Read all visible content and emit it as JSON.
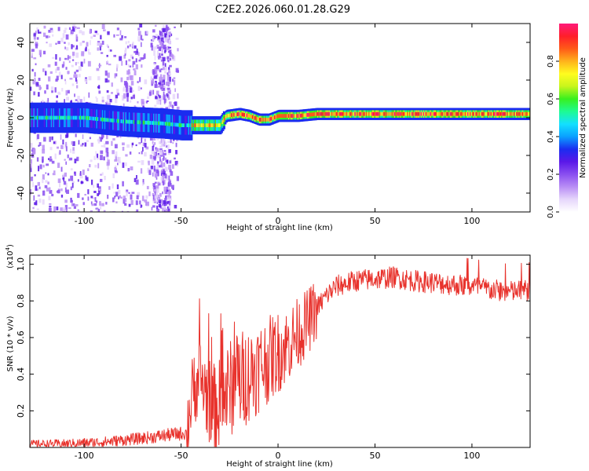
{
  "title": "C2E2.2026.060.01.28.G29",
  "colors": {
    "snr_line": "#e8322c",
    "colormap": [
      "#ffffff",
      "#e6d6fb",
      "#b98ef5",
      "#8a4ff0",
      "#5a18e8",
      "#1a2cf0",
      "#0aa0ff",
      "#13e0ff",
      "#1dfb93",
      "#39f01e",
      "#c8f51c",
      "#fffc1f",
      "#ffb21c",
      "#ff5a18",
      "#ff1f2a",
      "#ff1a7a"
    ]
  },
  "chart_data": [
    {
      "type": "heatmap",
      "xlabel": "Height of straight line (km)",
      "ylabel": "Frequency (Hz)",
      "xlim": [
        -128,
        130
      ],
      "ylim": [
        -50,
        50
      ],
      "xticks": [
        -100,
        -50,
        0,
        50,
        100
      ],
      "yticks": [
        -40,
        -20,
        0,
        20,
        40
      ],
      "colorbar": {
        "label": "Normalized spectral amplitude",
        "range": [
          0,
          1
        ],
        "ticks": [
          "0.0",
          "0.2",
          "0.4",
          "0.6",
          "0.8"
        ]
      },
      "ridge": {
        "x": [
          -128,
          -100,
          -80,
          -60,
          -50,
          -40,
          -30,
          -27,
          -20,
          -15,
          -10,
          -5,
          0,
          5,
          10,
          20,
          40,
          60,
          80,
          90,
          100,
          130
        ],
        "freq": [
          0,
          0,
          -2,
          -3,
          -4,
          -4,
          -4,
          1,
          2,
          1,
          -1,
          -1,
          1,
          1,
          1,
          2,
          2,
          2,
          2,
          2,
          2,
          2
        ]
      }
    },
    {
      "type": "line",
      "xlabel": "Height of straight line (km)",
      "ylabel": "SNR (10 * v/v)",
      "y_multiplier": "(x10",
      "y_multiplier_exp": "4",
      "y_multiplier_close": ")",
      "xlim": [
        -128,
        130
      ],
      "ylim": [
        0,
        1.05
      ],
      "xticks": [
        -100,
        -50,
        0,
        50,
        100
      ],
      "yticks": [
        0.2,
        0.4,
        0.6,
        0.8,
        1.0
      ],
      "series": [
        {
          "x": [
            -128,
            -110,
            -90,
            -70,
            -55,
            -47,
            -45,
            -43,
            -40,
            -38,
            -35,
            -32,
            -28,
            -24,
            -20,
            -15,
            -10,
            -5,
            0,
            5,
            10,
            15,
            20,
            25,
            30,
            40,
            50,
            60,
            70,
            80,
            90,
            100,
            110,
            120,
            130
          ],
          "y": [
            0.02,
            0.02,
            0.03,
            0.05,
            0.07,
            0.08,
            0.25,
            0.35,
            0.38,
            0.32,
            0.25,
            0.2,
            0.28,
            0.33,
            0.36,
            0.4,
            0.44,
            0.48,
            0.52,
            0.56,
            0.62,
            0.68,
            0.76,
            0.83,
            0.88,
            0.91,
            0.92,
            0.93,
            0.91,
            0.9,
            0.89,
            0.88,
            0.86,
            0.85,
            0.86
          ]
        }
      ]
    }
  ]
}
